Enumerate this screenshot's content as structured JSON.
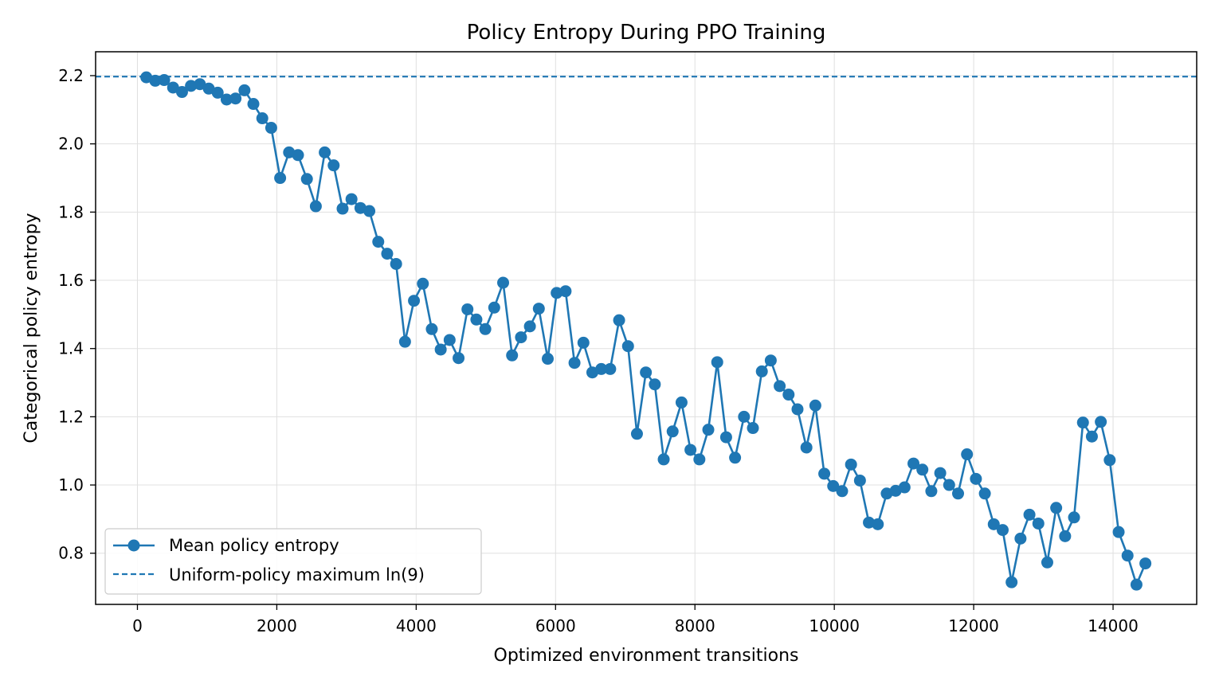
{
  "chart_data": {
    "type": "line",
    "title": "Policy Entropy During PPO Training",
    "xlabel": "Optimized environment transitions",
    "ylabel": "Categorical policy entropy",
    "xlim": [
      -600,
      15200
    ],
    "ylim": [
      0.65,
      2.27
    ],
    "xticks": [
      0,
      2000,
      4000,
      6000,
      8000,
      10000,
      12000,
      14000
    ],
    "yticks": [
      0.8,
      1.0,
      1.2,
      1.4,
      1.6,
      1.8,
      2.0,
      2.2
    ],
    "ytick_labels": [
      "0.8",
      "1.0",
      "1.2",
      "1.4",
      "1.6",
      "1.8",
      "2.0",
      "2.2"
    ],
    "grid": true,
    "legend_position": "lower-left",
    "colors": {
      "series": "#1f77b4",
      "grid": "#e0e0e0"
    },
    "series": [
      {
        "name": "Mean policy entropy",
        "style": "line-with-markers",
        "x": [
          128,
          256,
          384,
          512,
          640,
          768,
          896,
          1024,
          1152,
          1280,
          1408,
          1536,
          1664,
          1792,
          1920,
          2048,
          2176,
          2304,
          2432,
          2560,
          2688,
          2816,
          2944,
          3072,
          3200,
          3328,
          3456,
          3584,
          3712,
          3840,
          3968,
          4096,
          4224,
          4352,
          4480,
          4608,
          4736,
          4864,
          4992,
          5120,
          5248,
          5376,
          5504,
          5632,
          5760,
          5888,
          6016,
          6144,
          6272,
          6400,
          6528,
          6656,
          6784,
          6912,
          7040,
          7168,
          7296,
          7424,
          7552,
          7680,
          7808,
          7936,
          8064,
          8192,
          8320,
          8448,
          8576,
          8704,
          8832,
          8960,
          9088,
          9216,
          9344,
          9472,
          9600,
          9728,
          9856,
          9984,
          10112,
          10240,
          10368,
          10496,
          10624,
          10752,
          10880,
          11008,
          11136,
          11264,
          11392,
          11520,
          11648,
          11776,
          11904,
          12032,
          12160,
          12288,
          12416,
          12544,
          12672,
          12800,
          12928,
          13056,
          13184,
          13312,
          13440,
          13568,
          13696,
          13824,
          13952,
          14080,
          14208,
          14336,
          14464
        ],
        "y": [
          2.195,
          2.185,
          2.187,
          2.165,
          2.152,
          2.17,
          2.175,
          2.162,
          2.15,
          2.13,
          2.133,
          2.157,
          2.117,
          2.075,
          2.047,
          1.9,
          1.975,
          1.967,
          1.897,
          1.817,
          1.975,
          1.937,
          1.81,
          1.838,
          1.812,
          1.803,
          1.713,
          1.678,
          1.648,
          1.42,
          1.54,
          1.59,
          1.457,
          1.397,
          1.425,
          1.372,
          1.515,
          1.485,
          1.457,
          1.52,
          1.593,
          1.38,
          1.433,
          1.465,
          1.517,
          1.37,
          1.563,
          1.568,
          1.358,
          1.417,
          1.33,
          1.34,
          1.34,
          1.483,
          1.407,
          1.15,
          1.33,
          1.295,
          1.075,
          1.157,
          1.242,
          1.103,
          1.075,
          1.162,
          1.36,
          1.14,
          1.08,
          1.2,
          1.167,
          1.333,
          1.365,
          1.29,
          1.265,
          1.222,
          1.11,
          1.233,
          1.033,
          0.997,
          0.982,
          1.06,
          1.013,
          0.89,
          0.885,
          0.975,
          0.983,
          0.993,
          1.063,
          1.045,
          0.982,
          1.035,
          1.0,
          0.975,
          1.09,
          1.018,
          0.975,
          0.885,
          0.868,
          0.715,
          0.843,
          0.913,
          0.887,
          0.773,
          0.933,
          0.85,
          0.905,
          1.183,
          1.142,
          1.185,
          1.073,
          0.862,
          0.793,
          0.708,
          0.77
        ]
      },
      {
        "name": "Uniform-policy maximum ln(9)",
        "style": "dashed-horizontal",
        "y": 2.1972
      }
    ]
  }
}
